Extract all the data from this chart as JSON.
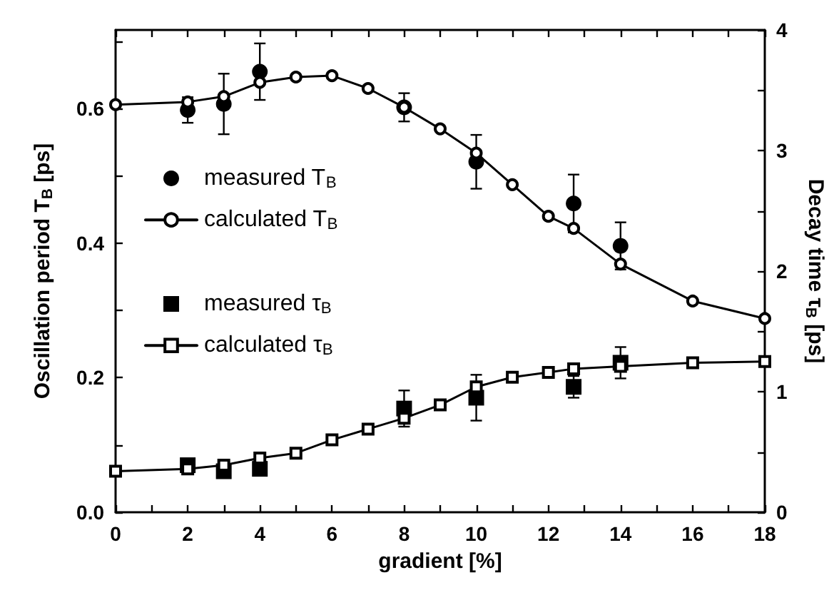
{
  "chart_data": {
    "type": "scatter",
    "xlabel": "gradient [%]",
    "ylabel": "Oscillation period T$_{B}$ [ps]",
    "y2label": "Decay time τ$_{B}$ [ps]",
    "xlim": [
      0,
      18
    ],
    "xticks": [
      0,
      {
        "value": 1,
        "label": null
      },
      2,
      {
        "value": 3,
        "label": null
      },
      4,
      {
        "value": 5,
        "label": null
      },
      6,
      {
        "value": 7,
        "label": null
      },
      8,
      {
        "value": 9,
        "label": null
      },
      10,
      {
        "value": 11,
        "label": null
      },
      12,
      {
        "value": 13,
        "label": null
      },
      14,
      {
        "value": 15,
        "label": null
      },
      16,
      {
        "value": 17,
        "label": null
      },
      18
    ],
    "ylim": [
      0,
      0.717
    ],
    "yticks": [
      {
        "value": 0,
        "label": "0.0"
      },
      {
        "value": 0.1,
        "label": null
      },
      {
        "value": 0.2,
        "label": "0.2"
      },
      {
        "value": 0.3,
        "label": null
      },
      {
        "value": 0.4,
        "label": "0.4"
      },
      {
        "value": 0.5,
        "label": null
      },
      {
        "value": 0.6,
        "label": "0.6"
      },
      {
        "value": 0.7,
        "label": null
      }
    ],
    "y2lim": [
      0,
      4
    ],
    "y2ticks": [
      0,
      {
        "value": 0.5,
        "label": null
      },
      1,
      {
        "value": 1.5,
        "label": null
      },
      2,
      {
        "value": 2.5,
        "label": null
      },
      3,
      {
        "value": 3.5,
        "label": null
      },
      4
    ],
    "legend": "left",
    "grid": false,
    "series": [
      {
        "name": "measured T$_{B}$",
        "marker": "circle",
        "color": "#000000",
        "x": [
          2,
          3,
          4,
          8,
          10,
          12.7,
          14
        ],
        "values": [
          0.598,
          0.607,
          0.655,
          0.602,
          0.521,
          0.459,
          0.396
        ],
        "errors": [
          0.019,
          0.045,
          0.042,
          0.021,
          0.04,
          0.043,
          0.035
        ]
      },
      {
        "name": "calculated T$_{B}$",
        "type": "line",
        "marker": "circle",
        "color": "#000000",
        "x": [
          0,
          2,
          3,
          4,
          5,
          6,
          7,
          8,
          9,
          10,
          11,
          12,
          12.7,
          14,
          16,
          18
        ],
        "values": [
          0.606,
          0.61,
          0.618,
          0.639,
          0.647,
          0.649,
          0.63,
          0.602,
          0.57,
          0.534,
          0.487,
          0.44,
          0.422,
          0.369,
          0.314,
          0.288
        ]
      },
      {
        "name": "measured τ$_{B}$",
        "marker": "square",
        "axis": "y2",
        "color": "#000000",
        "x": [
          2,
          3,
          4,
          8,
          10,
          12.7,
          14
        ],
        "values": [
          0.39,
          0.34,
          0.36,
          0.86,
          0.95,
          1.04,
          1.24
        ],
        "errors": [
          null,
          null,
          null,
          0.15,
          0.19,
          0.09,
          0.13
        ]
      },
      {
        "name": "calculated τ$_{B}$",
        "type": "line",
        "marker": "square",
        "axis": "y2",
        "color": "#000000",
        "x": [
          0,
          2,
          3,
          4,
          5,
          6,
          7,
          8,
          9,
          10,
          11,
          12,
          12.7,
          14,
          16,
          18
        ],
        "values": [
          0.34,
          0.36,
          0.39,
          0.45,
          0.49,
          0.6,
          0.69,
          0.78,
          0.89,
          1.04,
          1.12,
          1.16,
          1.19,
          1.21,
          1.24,
          1.25
        ]
      }
    ]
  }
}
